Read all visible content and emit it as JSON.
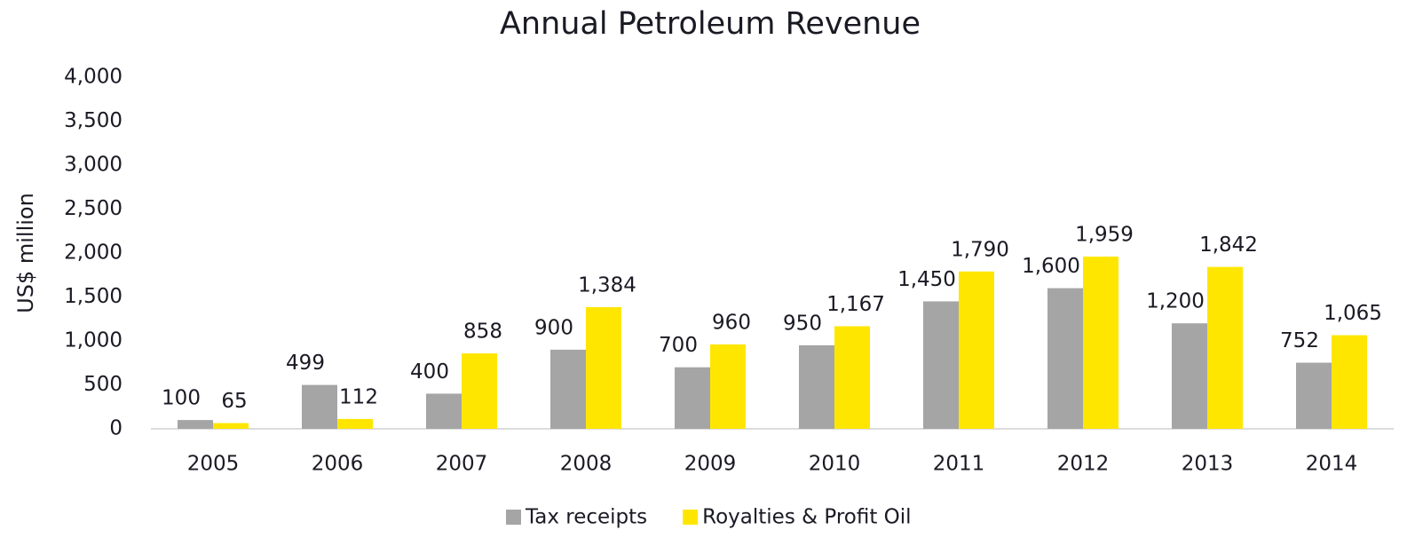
{
  "chart_data": {
    "type": "bar",
    "title": "Annual Petroleum Revenue",
    "y_label": "US$ million",
    "categories": [
      "2005",
      "2006",
      "2007",
      "2008",
      "2009",
      "2010",
      "2011",
      "2012",
      "2013",
      "2014"
    ],
    "series": [
      {
        "name": "Tax receipts",
        "color": "#a5a5a5",
        "values": [
          100,
          499,
          400,
          900,
          700,
          950,
          1450,
          1600,
          1200,
          752
        ],
        "value_labels": [
          "100",
          "499",
          "400",
          "900",
          "700",
          "950",
          "1,450",
          "1,600",
          "1,200",
          "752"
        ]
      },
      {
        "name": "Royalties & Profit Oil",
        "color": "#ffe600",
        "values": [
          65,
          112,
          858,
          1384,
          960,
          1167,
          1790,
          1959,
          1842,
          1065
        ],
        "value_labels": [
          "65",
          "112",
          "858",
          "1,384",
          "960",
          "1,167",
          "1,790",
          "1,959",
          "1,842",
          "1,065"
        ]
      }
    ],
    "ylim": [
      0,
      4000
    ],
    "yticks": [
      0,
      500,
      {
        "value": 1000,
        "label": "1,000"
      },
      {
        "value": 1500,
        "label": "1,500"
      },
      {
        "value": 2000,
        "label": "2,000"
      },
      {
        "value": 2500,
        "label": "2,500"
      },
      {
        "value": 3000,
        "label": "3,000"
      },
      {
        "value": 3500,
        "label": "3,500"
      },
      {
        "value": 4000,
        "label": "4,000"
      }
    ],
    "grid": false,
    "legend": "bottom"
  }
}
